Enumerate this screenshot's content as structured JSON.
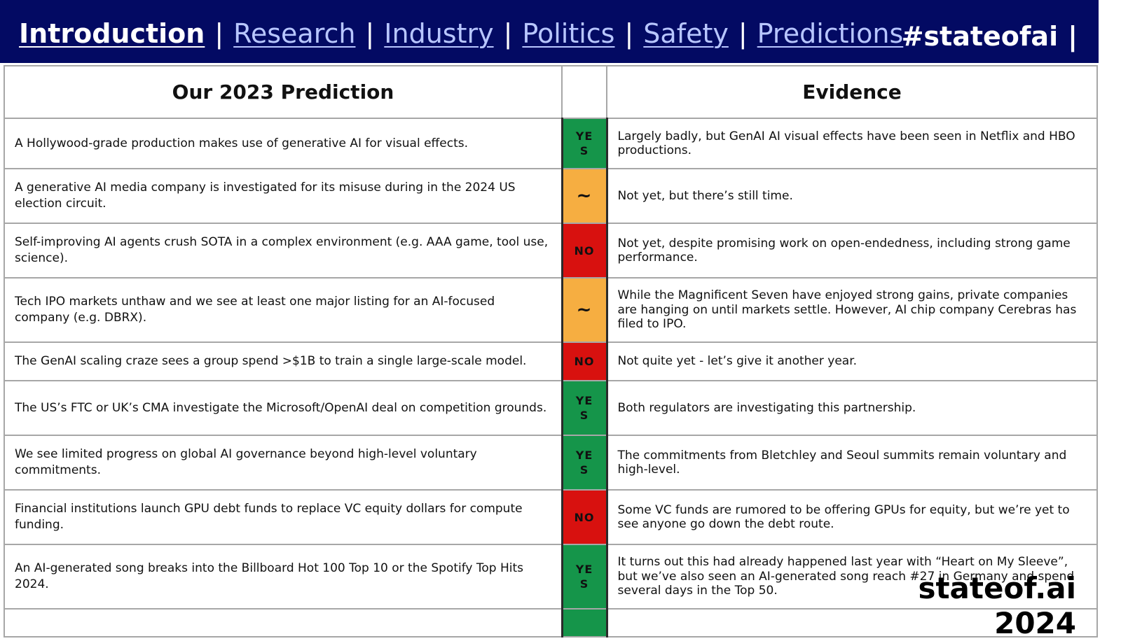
{
  "nav": {
    "items": [
      {
        "label": "Introduction",
        "active": true
      },
      {
        "label": "Research",
        "active": false
      },
      {
        "label": "Industry",
        "active": false
      },
      {
        "label": "Politics",
        "active": false
      },
      {
        "label": "Safety",
        "active": false
      },
      {
        "label": "Predictions",
        "active": false
      }
    ],
    "separator": "|",
    "hashtag": "#stateofai",
    "hashtag_separator": "|"
  },
  "table": {
    "headers": {
      "prediction": "Our 2023 Prediction",
      "verdict": "",
      "evidence": "Evidence"
    },
    "rows": [
      {
        "prediction": "A Hollywood-grade production makes use of generative AI for visual effects.",
        "verdict": "YES",
        "status": "yes",
        "evidence": "Largely badly, but GenAI AI visual effects have been seen in Netflix and HBO productions."
      },
      {
        "prediction": "A generative AI media company is investigated for its misuse during in the 2024 US election circuit.",
        "verdict": "~",
        "status": "tilde",
        "evidence": "Not yet, but there’s still time."
      },
      {
        "prediction": "Self-improving AI agents crush SOTA in a complex environment (e.g. AAA game, tool use, science).",
        "verdict": "NO",
        "status": "no",
        "evidence": "Not yet, despite promising work on open-endedness, including strong game performance."
      },
      {
        "prediction": "Tech IPO markets unthaw and we see at least one major listing for an AI-focused company (e.g. DBRX).",
        "verdict": "~",
        "status": "tilde",
        "evidence": "While the Magnificent Seven have enjoyed strong gains, private companies are hanging on until markets settle. However, AI chip company Cerebras has filed to IPO."
      },
      {
        "prediction": "The GenAI scaling craze sees a group spend >$1B to train a single large-scale model.",
        "verdict": "NO",
        "status": "no",
        "evidence": "Not quite yet - let’s give it another year."
      },
      {
        "prediction": "The US’s FTC or UK’s CMA investigate the Microsoft/OpenAI deal on competition grounds.",
        "verdict": "YES",
        "status": "yes",
        "evidence": "Both regulators are investigating this partnership."
      },
      {
        "prediction": "We see limited progress on global AI governance beyond high-level voluntary commitments.",
        "verdict": "YES",
        "status": "yes",
        "evidence": "The commitments from Bletchley and Seoul summits remain voluntary and high-level."
      },
      {
        "prediction": "Financial institutions launch GPU debt funds to replace VC equity dollars for compute funding.",
        "verdict": "NO",
        "status": "no",
        "evidence": "Some VC funds are rumored to be offering GPUs for equity, but we’re yet to see anyone go down the debt route."
      },
      {
        "prediction": "An AI-generated song breaks into the Billboard Hot 100 Top 10 or the Spotify Top Hits 2024.",
        "verdict": "YES",
        "status": "yes",
        "evidence": "It turns out this had already happened last year with “Heart on My Sleeve”, but we’ve also seen an AI-generated song reach #27 in Germany and spend several days in the Top 50."
      }
    ]
  },
  "footer": {
    "brand": "stateof.ai",
    "year": "2024"
  },
  "colors": {
    "header_bg": "#030a63",
    "yes": "#15954a",
    "no": "#d8110f",
    "partial": "#f6ae41"
  }
}
